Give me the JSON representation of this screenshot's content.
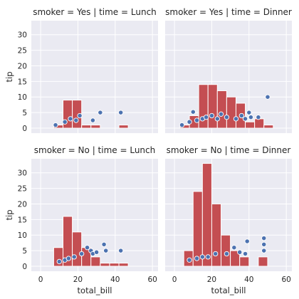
{
  "chart_data": {
    "type": "facet_grid",
    "colors": {
      "background": "#eaeaf2",
      "grid": "#ffffff",
      "bar": "#c44e52",
      "point": "#4c72b0",
      "point_edge": "#ffffff"
    },
    "grid": true,
    "x_ticks": [
      0,
      20,
      40,
      60
    ],
    "y_ticks": [
      0,
      5,
      10,
      15,
      20,
      25,
      30
    ],
    "xlim": [
      -5,
      63
    ],
    "ylim": [
      -1.6,
      34.5
    ],
    "xlabel": "total_bill",
    "ylabel": "tip",
    "bin_width": 5,
    "panels": [
      {
        "title": "smoker = Yes | time = Lunch",
        "histogram": [
          {
            "x0": 7.0,
            "count": 1
          },
          {
            "x0": 12.0,
            "count": 9
          },
          {
            "x0": 17.0,
            "count": 9
          },
          {
            "x0": 22.0,
            "count": 1
          },
          {
            "x0": 27.0,
            "count": 1
          },
          {
            "x0": 32.0,
            "count": 0
          },
          {
            "x0": 37.0,
            "count": 0
          },
          {
            "x0": 42.0,
            "count": 1
          }
        ],
        "points": [
          [
            8,
            1
          ],
          [
            13,
            2
          ],
          [
            16,
            3
          ],
          [
            19,
            2.5
          ],
          [
            21,
            4
          ],
          [
            28,
            2.5
          ],
          [
            32,
            5
          ],
          [
            43,
            5
          ]
        ]
      },
      {
        "title": "smoker = Yes | time = Dinner",
        "histogram": [
          {
            "x0": 3.0,
            "count": 1
          },
          {
            "x0": 8.0,
            "count": 4
          },
          {
            "x0": 13.0,
            "count": 14
          },
          {
            "x0": 18.0,
            "count": 14
          },
          {
            "x0": 23.0,
            "count": 12
          },
          {
            "x0": 28.0,
            "count": 10
          },
          {
            "x0": 33.0,
            "count": 8
          },
          {
            "x0": 38.0,
            "count": 2
          },
          {
            "x0": 43.0,
            "count": 3
          },
          {
            "x0": 48.0,
            "count": 1
          }
        ],
        "points": [
          [
            4,
            1
          ],
          [
            8,
            2
          ],
          [
            10,
            5.2
          ],
          [
            12,
            2.5
          ],
          [
            15,
            3
          ],
          [
            17,
            3.5
          ],
          [
            20,
            4
          ],
          [
            23,
            3
          ],
          [
            25,
            4.5
          ],
          [
            28,
            3.5
          ],
          [
            33,
            3
          ],
          [
            36,
            4
          ],
          [
            38,
            3
          ],
          [
            40,
            5
          ],
          [
            41,
            3.5
          ],
          [
            45,
            3.5
          ],
          [
            50,
            10
          ]
        ]
      },
      {
        "title": "smoker = No | time = Lunch",
        "histogram": [
          {
            "x0": 7.0,
            "count": 6
          },
          {
            "x0": 12.0,
            "count": 16
          },
          {
            "x0": 17.0,
            "count": 11
          },
          {
            "x0": 22.0,
            "count": 6
          },
          {
            "x0": 27.0,
            "count": 3
          },
          {
            "x0": 32.0,
            "count": 1
          },
          {
            "x0": 37.0,
            "count": 1
          },
          {
            "x0": 42.0,
            "count": 1
          }
        ],
        "points": [
          [
            10,
            1.5
          ],
          [
            13,
            2
          ],
          [
            15,
            2.5
          ],
          [
            18,
            3
          ],
          [
            22,
            4
          ],
          [
            25,
            6
          ],
          [
            27,
            5
          ],
          [
            28,
            4
          ],
          [
            30,
            4.5
          ],
          [
            34,
            7
          ],
          [
            35,
            5
          ],
          [
            43,
            5
          ]
        ]
      },
      {
        "title": "smoker = No | time = Dinner",
        "histogram": [
          {
            "x0": 5.0,
            "count": 5
          },
          {
            "x0": 10.0,
            "count": 24
          },
          {
            "x0": 15.0,
            "count": 33
          },
          {
            "x0": 20.0,
            "count": 20
          },
          {
            "x0": 25.0,
            "count": 10
          },
          {
            "x0": 30.0,
            "count": 5
          },
          {
            "x0": 35.0,
            "count": 3
          },
          {
            "x0": 40.0,
            "count": 0
          },
          {
            "x0": 45.0,
            "count": 3
          }
        ],
        "points": [
          [
            8,
            2
          ],
          [
            12,
            2.5
          ],
          [
            15,
            3
          ],
          [
            18,
            3
          ],
          [
            22,
            4
          ],
          [
            28,
            4
          ],
          [
            32,
            6
          ],
          [
            35,
            4.5
          ],
          [
            38,
            4
          ],
          [
            39,
            8
          ],
          [
            48,
            5
          ],
          [
            48,
            7
          ],
          [
            48,
            9
          ]
        ]
      }
    ]
  }
}
